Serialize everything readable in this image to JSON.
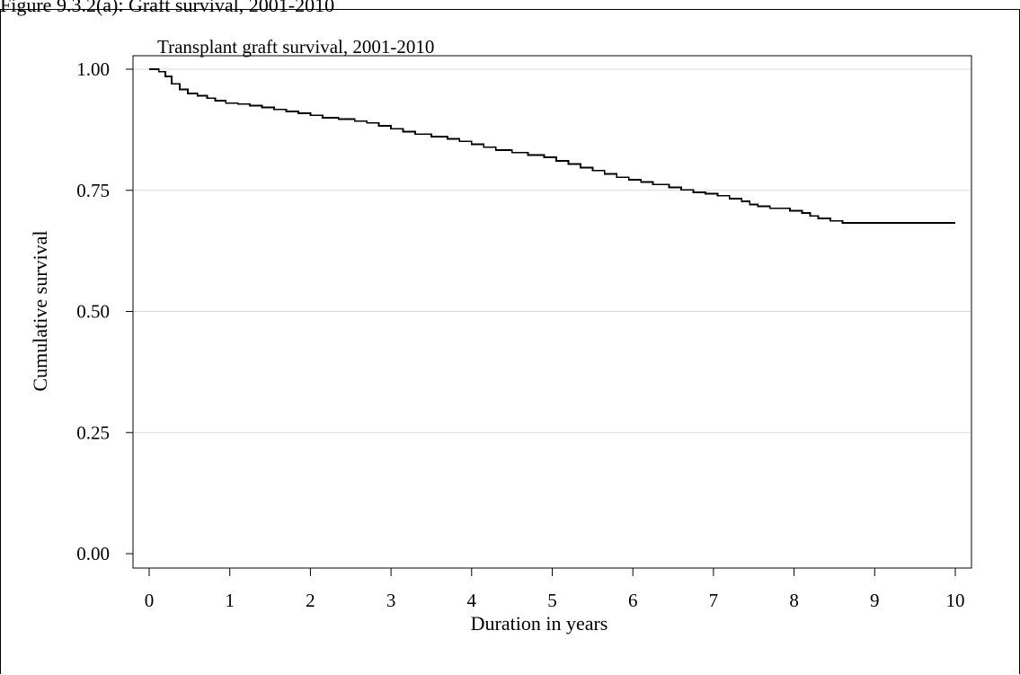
{
  "figure_caption": "Figure 9.3.2(a): Graft survival, 2001-2010",
  "chart_data": {
    "type": "line",
    "step": true,
    "title": "Transplant graft survival, 2001-2010",
    "xlabel": "Duration in years",
    "ylabel": "Cumulative survival",
    "xlim": [
      0,
      10
    ],
    "ylim": [
      0,
      1
    ],
    "xticks": [
      0,
      1,
      2,
      3,
      4,
      5,
      6,
      7,
      8,
      9,
      10
    ],
    "xtick_labels": [
      "0",
      "1",
      "2",
      "3",
      "4",
      "5",
      "6",
      "7",
      "8",
      "9",
      "10"
    ],
    "yticks": [
      0,
      0.25,
      0.5,
      0.75,
      1
    ],
    "ytick_labels": [
      "0.00",
      "0.25",
      "0.50",
      "0.75",
      "1.00"
    ],
    "grid": "horizontal",
    "line_color": "#000000",
    "grid_color": "#d9d9d9",
    "series": [
      {
        "x": [
          0,
          0.12,
          0.2,
          0.28,
          0.38,
          0.48,
          0.6,
          0.72,
          0.82,
          0.95,
          1.1,
          1.25,
          1.4,
          1.55,
          1.7,
          1.85,
          2.0,
          2.15,
          2.35,
          2.55,
          2.7,
          2.85,
          3.0,
          3.15,
          3.3,
          3.5,
          3.7,
          3.85,
          4.0,
          4.15,
          4.3,
          4.5,
          4.7,
          4.9,
          5.05,
          5.2,
          5.35,
          5.5,
          5.65,
          5.8,
          5.95,
          6.1,
          6.25,
          6.45,
          6.6,
          6.75,
          6.9,
          7.05,
          7.2,
          7.35,
          7.45,
          7.55,
          7.7,
          7.95,
          8.1,
          8.2,
          8.3,
          8.45,
          8.6,
          10.0
        ],
        "y": [
          1.0,
          0.995,
          0.985,
          0.97,
          0.958,
          0.95,
          0.945,
          0.94,
          0.935,
          0.93,
          0.928,
          0.925,
          0.921,
          0.917,
          0.913,
          0.909,
          0.905,
          0.9,
          0.897,
          0.893,
          0.889,
          0.883,
          0.877,
          0.871,
          0.866,
          0.861,
          0.856,
          0.851,
          0.845,
          0.839,
          0.833,
          0.828,
          0.823,
          0.818,
          0.811,
          0.804,
          0.797,
          0.791,
          0.784,
          0.777,
          0.772,
          0.767,
          0.762,
          0.756,
          0.751,
          0.746,
          0.743,
          0.739,
          0.733,
          0.727,
          0.721,
          0.717,
          0.713,
          0.708,
          0.703,
          0.697,
          0.692,
          0.687,
          0.683,
          0.683
        ]
      }
    ]
  }
}
